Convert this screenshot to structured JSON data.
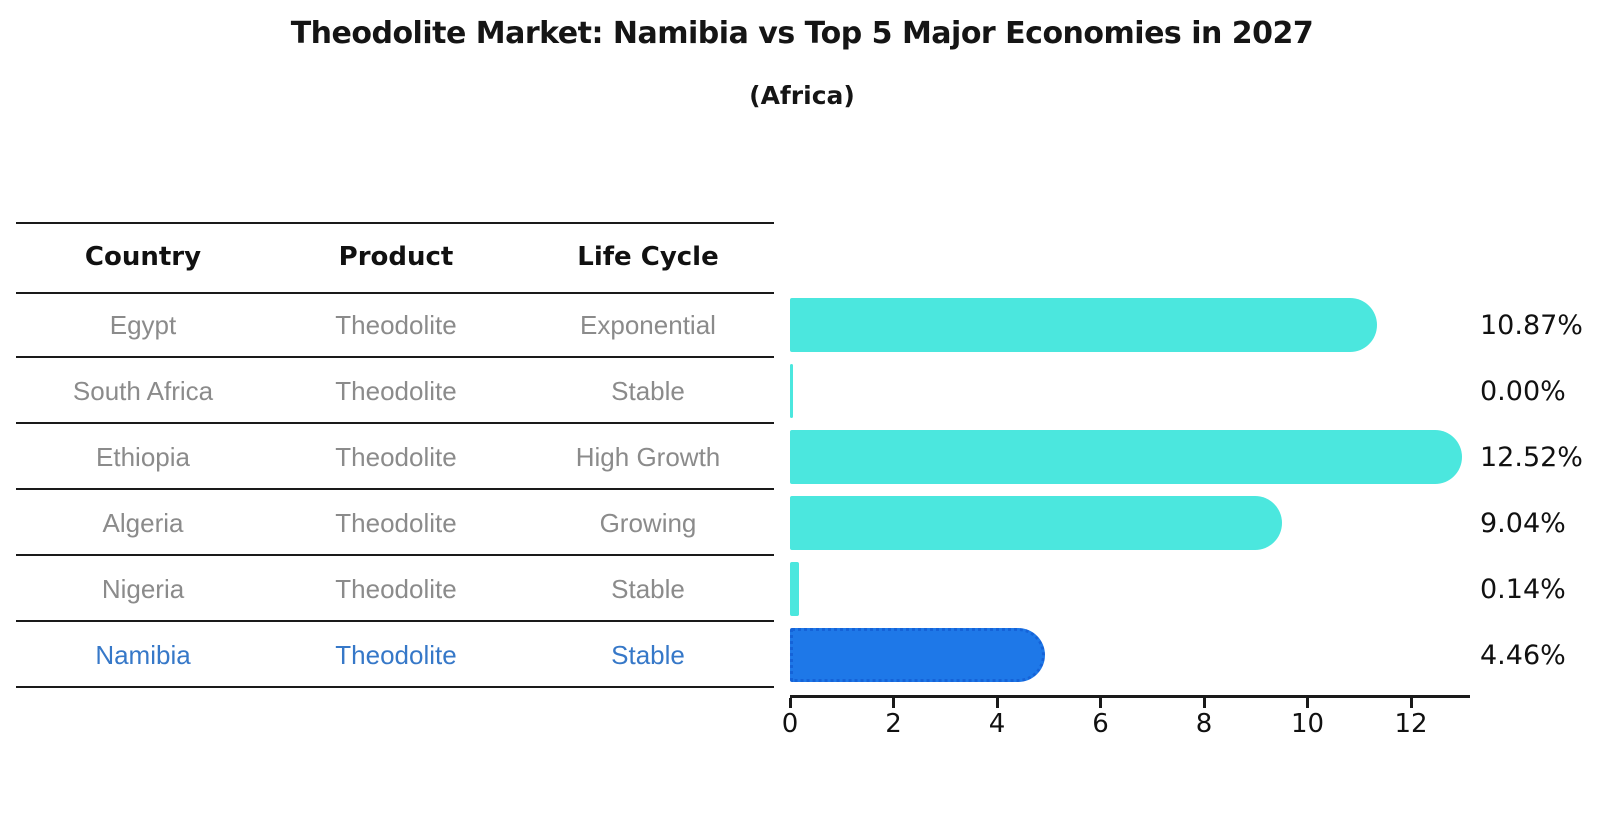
{
  "title": "Theodolite Market: Namibia vs Top 5 Major Economies in 2027",
  "subtitle": "(Africa)",
  "colors": {
    "bar": "#4be7de",
    "highlight_bar": "#1e78e8",
    "highlight_bar_border": "#1563d8",
    "highlight_text": "#3678c8",
    "row_text": "#8b8b8b",
    "axis": "#1a1a1a"
  },
  "table": {
    "headers": [
      "Country",
      "Product",
      "Life Cycle"
    ]
  },
  "chart_data": {
    "type": "bar",
    "orientation": "horizontal",
    "title": "Theodolite Market: Namibia vs Top 5 Major Economies in 2027",
    "subtitle": "(Africa)",
    "xlim": [
      0,
      13.1
    ],
    "x_ticks": [
      0,
      2,
      4,
      6,
      8,
      10,
      12
    ],
    "grid": false,
    "legend": false,
    "rows": [
      {
        "country": "Egypt",
        "product": "Theodolite",
        "life_cycle": "Exponential",
        "value": 10.87,
        "label": "10.87%",
        "highlight": false
      },
      {
        "country": "South Africa",
        "product": "Theodolite",
        "life_cycle": "Stable",
        "value": 0.0,
        "label": "0.00%",
        "highlight": false
      },
      {
        "country": "Ethiopia",
        "product": "Theodolite",
        "life_cycle": "High Growth",
        "value": 12.52,
        "label": "12.52%",
        "highlight": false
      },
      {
        "country": "Algeria",
        "product": "Theodolite",
        "life_cycle": "Growing",
        "value": 9.04,
        "label": "9.04%",
        "highlight": false
      },
      {
        "country": "Nigeria",
        "product": "Theodolite",
        "life_cycle": "Stable",
        "value": 0.14,
        "label": "0.14%",
        "highlight": false
      },
      {
        "country": "Namibia",
        "product": "Theodolite",
        "life_cycle": "Stable",
        "value": 4.46,
        "label": "4.46%",
        "highlight": true
      }
    ]
  }
}
